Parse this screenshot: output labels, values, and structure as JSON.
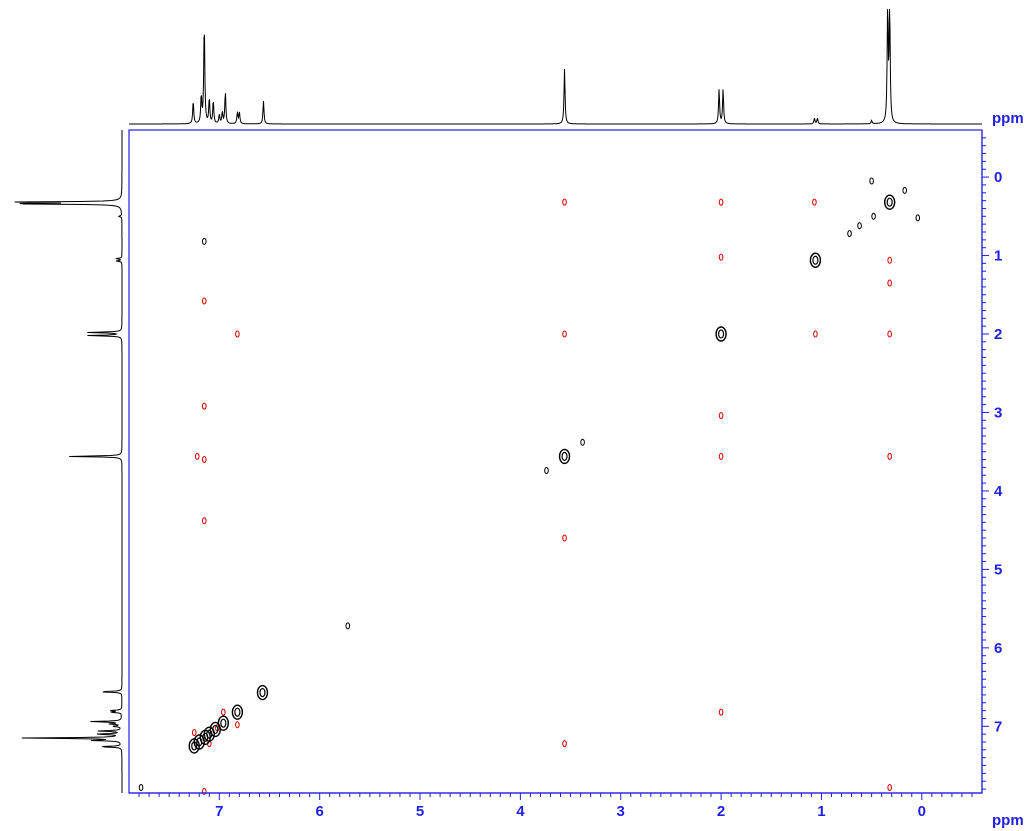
{
  "chart_data": {
    "type": "2d-nmr-contour",
    "x_axis": {
      "unit": "ppm",
      "range_left": 7.9,
      "range_right": -0.6,
      "ticks": [
        7,
        6,
        5,
        4,
        3,
        2,
        1,
        0
      ]
    },
    "y_axis": {
      "unit": "ppm",
      "range_top": -0.6,
      "range_bottom": 7.85,
      "ticks": [
        0,
        1,
        2,
        3,
        4,
        5,
        6,
        7
      ]
    },
    "axis_color": "#1f1fe6",
    "projection_color": "#000000",
    "positive_color": "#000000",
    "negative_color": "#e00000",
    "projection_peaks": [
      {
        "ppm": 7.26,
        "height": 0.2
      },
      {
        "ppm": 7.18,
        "height": 0.24
      },
      {
        "ppm": 7.15,
        "height": 0.88
      },
      {
        "ppm": 7.1,
        "height": 0.22
      },
      {
        "ppm": 7.06,
        "height": 0.2
      },
      {
        "ppm": 7.0,
        "height": 0.08
      },
      {
        "ppm": 6.97,
        "height": 0.1
      },
      {
        "ppm": 6.94,
        "height": 0.28
      },
      {
        "ppm": 6.82,
        "height": 0.1
      },
      {
        "ppm": 6.8,
        "height": 0.1
      },
      {
        "ppm": 6.56,
        "height": 0.2
      },
      {
        "ppm": 3.56,
        "height": 0.48
      },
      {
        "ppm": 2.02,
        "height": 0.3
      },
      {
        "ppm": 1.98,
        "height": 0.3
      },
      {
        "ppm": 1.07,
        "height": 0.05
      },
      {
        "ppm": 1.04,
        "height": 0.05
      },
      {
        "ppm": 0.5,
        "height": 0.03
      },
      {
        "ppm": 0.34,
        "height": 1.0
      },
      {
        "ppm": 0.32,
        "height": 1.0
      }
    ],
    "diagonal_peaks": [
      {
        "x": 7.25,
        "y": 7.25
      },
      {
        "x": 7.2,
        "y": 7.2
      },
      {
        "x": 7.14,
        "y": 7.14
      },
      {
        "x": 7.1,
        "y": 7.1
      },
      {
        "x": 7.04,
        "y": 7.04
      },
      {
        "x": 6.96,
        "y": 6.96
      },
      {
        "x": 6.82,
        "y": 6.82
      },
      {
        "x": 6.57,
        "y": 6.57
      },
      {
        "x": 3.56,
        "y": 3.56
      },
      {
        "x": 2.0,
        "y": 2.0
      },
      {
        "x": 1.06,
        "y": 1.06
      },
      {
        "x": 0.32,
        "y": 0.32
      }
    ],
    "positive_peaks": [
      {
        "x": 0.5,
        "y": 0.05
      },
      {
        "x": 0.17,
        "y": 0.17
      },
      {
        "x": 0.48,
        "y": 0.5
      },
      {
        "x": 0.62,
        "y": 0.62
      },
      {
        "x": 0.72,
        "y": 0.72
      },
      {
        "x": 0.04,
        "y": 0.52
      },
      {
        "x": 5.72,
        "y": 5.72
      },
      {
        "x": 3.74,
        "y": 3.74
      },
      {
        "x": 3.38,
        "y": 3.38
      },
      {
        "x": 7.15,
        "y": 0.82
      },
      {
        "x": 7.78,
        "y": 7.78
      }
    ],
    "negative_peaks": [
      {
        "x": 3.56,
        "y": 0.32
      },
      {
        "x": 2.0,
        "y": 0.32
      },
      {
        "x": 1.07,
        "y": 0.32
      },
      {
        "x": 2.0,
        "y": 1.02
      },
      {
        "x": 0.32,
        "y": 1.06
      },
      {
        "x": 0.32,
        "y": 1.35
      },
      {
        "x": 7.15,
        "y": 1.58
      },
      {
        "x": 6.82,
        "y": 2.0
      },
      {
        "x": 3.56,
        "y": 2.0
      },
      {
        "x": 1.06,
        "y": 2.0
      },
      {
        "x": 0.32,
        "y": 2.0
      },
      {
        "x": 7.15,
        "y": 2.92
      },
      {
        "x": 2.0,
        "y": 3.04
      },
      {
        "x": 7.22,
        "y": 3.56
      },
      {
        "x": 7.15,
        "y": 3.6
      },
      {
        "x": 2.0,
        "y": 3.56
      },
      {
        "x": 0.32,
        "y": 3.56
      },
      {
        "x": 7.15,
        "y": 4.38
      },
      {
        "x": 3.56,
        "y": 4.6
      },
      {
        "x": 2.0,
        "y": 6.82
      },
      {
        "x": 6.82,
        "y": 6.98
      },
      {
        "x": 6.96,
        "y": 6.82
      },
      {
        "x": 7.02,
        "y": 7.02
      },
      {
        "x": 7.25,
        "y": 7.08
      },
      {
        "x": 7.1,
        "y": 7.22
      },
      {
        "x": 3.56,
        "y": 7.22
      },
      {
        "x": 0.32,
        "y": 7.78
      },
      {
        "x": 7.15,
        "y": 7.83
      }
    ]
  }
}
